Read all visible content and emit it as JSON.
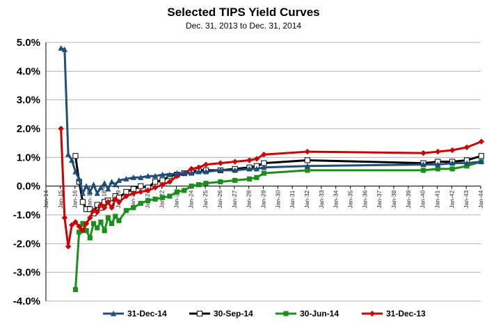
{
  "chart_data": {
    "type": "line",
    "title": "Selected TIPS Yield Curves",
    "subtitle": "Dec. 31, 2013 to Dec. 31, 2014",
    "xlabel": "",
    "ylabel": "",
    "ylim": [
      -4.0,
      5.0
    ],
    "yticks": [
      5.0,
      4.0,
      3.0,
      2.0,
      1.0,
      0.0,
      -1.0,
      -2.0,
      -3.0,
      -4.0
    ],
    "yticklabels": [
      "5.0%",
      "4.0%",
      "3.0%",
      "2.0%",
      "1.0%",
      "0.0%",
      "-1.0%",
      "-2.0%",
      "-3.0%",
      "-4.0%"
    ],
    "xlim": [
      2014.0,
      2044.0
    ],
    "xticklabels": [
      "Jan-14",
      "Jan-15",
      "Jan-16",
      "Jan-17",
      "Jan-18",
      "Jan-19",
      "Jan-20",
      "Jan-21",
      "Jan-22",
      "Jan-23",
      "Jan-24",
      "Jan-25",
      "Jan-26",
      "Jan-27",
      "Jan-28",
      "Jan-29",
      "Jan-30",
      "Jan-31",
      "Jan-32",
      "Jan-33",
      "Jan-34",
      "Jan-35",
      "Jan-36",
      "Jan-37",
      "Jan-38",
      "Jan-39",
      "Jan-40",
      "Jan-41",
      "Jan-42",
      "Jan-43",
      "Jan-44"
    ],
    "grid": "horizontal",
    "legend_position": "bottom",
    "series": [
      {
        "name": "30-Jun-14",
        "color": "#1a8f1a",
        "marker": "square-filled",
        "x": [
          2016.04,
          2016.29,
          2016.54,
          2016.79,
          2017.04,
          2017.29,
          2017.54,
          2017.79,
          2018.04,
          2018.29,
          2018.54,
          2018.79,
          2019.04,
          2019.54,
          2020.04,
          2020.54,
          2021.04,
          2021.54,
          2022.04,
          2022.54,
          2023.04,
          2023.54,
          2024.04,
          2024.54,
          2025.04,
          2026.04,
          2027.04,
          2028.04,
          2028.54,
          2029.04,
          2032.04,
          2040.04,
          2041.04,
          2042.04,
          2043.04,
          2044.04
        ],
        "y": [
          -3.6,
          -1.6,
          -1.3,
          -1.55,
          -1.8,
          -1.3,
          -1.45,
          -1.25,
          -1.55,
          -1.1,
          -1.3,
          -1.05,
          -1.2,
          -0.85,
          -0.75,
          -0.6,
          -0.5,
          -0.45,
          -0.4,
          -0.35,
          -0.2,
          -0.15,
          0.0,
          0.05,
          0.1,
          0.15,
          0.2,
          0.25,
          0.3,
          0.45,
          0.55,
          0.55,
          0.6,
          0.6,
          0.7,
          0.85
        ]
      },
      {
        "name": "30-Sep-14",
        "color": "#000000",
        "marker": "square-open",
        "x": [
          2016.04,
          2016.29,
          2016.54,
          2016.79,
          2017.04,
          2017.29,
          2017.54,
          2017.79,
          2018.04,
          2018.29,
          2018.54,
          2018.79,
          2019.04,
          2019.54,
          2020.04,
          2020.54,
          2021.04,
          2021.54,
          2022.04,
          2022.54,
          2023.04,
          2023.54,
          2024.04,
          2024.54,
          2025.04,
          2026.04,
          2027.04,
          2028.04,
          2028.54,
          2029.04,
          2032.04,
          2040.04,
          2041.04,
          2042.04,
          2043.04,
          2044.04
        ],
        "y": [
          1.05,
          0.15,
          -0.55,
          -0.8,
          -0.8,
          -0.95,
          -0.65,
          -0.75,
          -0.55,
          -0.5,
          -0.6,
          -0.35,
          -0.4,
          -0.2,
          -0.1,
          0.0,
          -0.05,
          0.15,
          0.2,
          0.35,
          0.4,
          0.45,
          0.5,
          0.55,
          0.55,
          0.55,
          0.6,
          0.65,
          0.7,
          0.8,
          0.9,
          0.8,
          0.85,
          0.85,
          0.9,
          1.05
        ]
      },
      {
        "name": "31-Dec-13",
        "color": "#cc0000",
        "marker": "diamond-filled",
        "x": [
          2015.04,
          2015.29,
          2015.54,
          2015.79,
          2016.04,
          2016.29,
          2016.54,
          2016.79,
          2017.04,
          2017.29,
          2017.54,
          2017.79,
          2018.04,
          2018.29,
          2018.54,
          2018.79,
          2019.04,
          2019.54,
          2020.04,
          2020.54,
          2021.04,
          2021.54,
          2022.04,
          2022.54,
          2023.04,
          2023.54,
          2024.04,
          2024.54,
          2025.04,
          2026.04,
          2027.04,
          2028.04,
          2028.54,
          2029.04,
          2032.04,
          2040.04,
          2041.04,
          2042.04,
          2043.04,
          2044.04
        ],
        "y": [
          2.0,
          -1.1,
          -2.1,
          -1.35,
          -1.25,
          -1.4,
          -1.55,
          -1.3,
          -1.1,
          -0.85,
          -0.9,
          -0.65,
          -0.75,
          -0.55,
          -0.75,
          -0.45,
          -0.55,
          -0.35,
          -0.25,
          -0.2,
          -0.15,
          -0.05,
          0.05,
          0.15,
          0.35,
          0.45,
          0.6,
          0.65,
          0.75,
          0.8,
          0.85,
          0.9,
          0.95,
          1.1,
          1.2,
          1.15,
          1.2,
          1.25,
          1.35,
          1.55
        ]
      },
      {
        "name": "31-Dec-14",
        "color": "#1f4e79",
        "marker": "triangle-filled",
        "x": [
          2015.04,
          2015.29,
          2015.54,
          2015.79,
          2016.04,
          2016.29,
          2016.54,
          2016.79,
          2017.04,
          2017.29,
          2017.54,
          2017.79,
          2018.04,
          2018.29,
          2018.54,
          2018.79,
          2019.04,
          2019.54,
          2020.04,
          2020.54,
          2021.04,
          2021.54,
          2022.04,
          2022.54,
          2023.04,
          2023.54,
          2024.04,
          2024.54,
          2025.04,
          2026.04,
          2027.04,
          2028.04,
          2028.54,
          2029.04,
          2032.04,
          2040.04,
          2041.04,
          2042.04,
          2043.04,
          2044.04
        ],
        "y": [
          4.8,
          4.75,
          1.1,
          0.9,
          0.5,
          0.25,
          -0.25,
          0.0,
          -0.2,
          0.05,
          -0.25,
          -0.05,
          0.1,
          -0.1,
          0.15,
          0.05,
          0.2,
          0.25,
          0.3,
          0.3,
          0.35,
          0.35,
          0.4,
          0.4,
          0.45,
          0.45,
          0.45,
          0.5,
          0.5,
          0.55,
          0.55,
          0.6,
          0.6,
          0.65,
          0.7,
          0.75,
          0.75,
          0.8,
          0.8,
          0.85
        ]
      }
    ],
    "legend": [
      "31-Dec-14",
      "30-Sep-14",
      "30-Jun-14",
      "31-Dec-13"
    ]
  }
}
